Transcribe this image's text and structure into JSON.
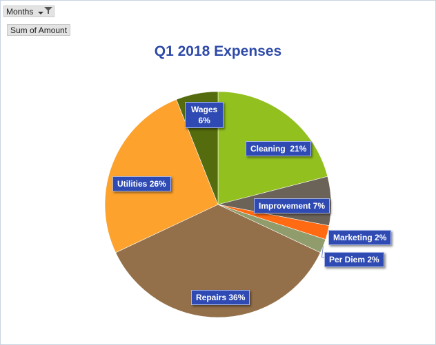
{
  "pivot": {
    "field_label": "Months",
    "value_label": "Sum of Amount"
  },
  "icons": {
    "dropdown": "dropdown-arrow-icon",
    "filter": "filter-funnel-icon"
  },
  "chart_data": {
    "type": "pie",
    "title": "Q1 2018 Expenses",
    "categories": [
      "Cleaning",
      "Improvement",
      "Marketing",
      "Per Diem",
      "Repairs",
      "Utilities",
      "Wages"
    ],
    "values": [
      21,
      7,
      2,
      2,
      36,
      26,
      6
    ],
    "unit": "%",
    "colors": [
      "#92c01f",
      "#6c6358",
      "#ff6a12",
      "#919c6c",
      "#94704a",
      "#fca22d",
      "#546b0e"
    ],
    "labels": [
      {
        "line1": "Cleaning",
        "line2": "21%"
      },
      {
        "line1": "Improvement",
        "line2": "7%"
      },
      {
        "line1": "Marketing",
        "line2": "2%"
      },
      {
        "line1": "Per Diem",
        "line2": "2%"
      },
      {
        "line1": "Repairs",
        "line2": "36%"
      },
      {
        "line1": "Utilities",
        "line2": "26%"
      },
      {
        "line1": "Wages",
        "line2": "6%"
      }
    ],
    "start_angle": "12 o'clock",
    "direction": "clockwise",
    "legend": "none",
    "label_color": "#2f4bb3",
    "title_color": "#2e4aa8"
  }
}
